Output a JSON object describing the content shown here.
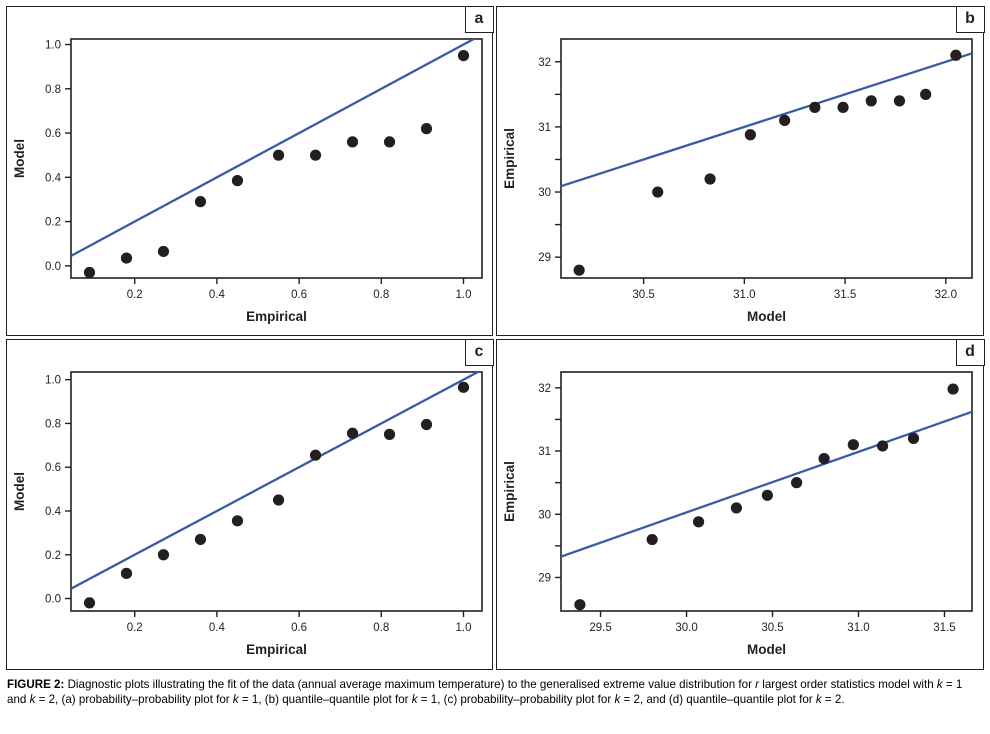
{
  "colors": {
    "reference_line": "#3b5aa5",
    "marker": "#231f20",
    "frame": "#231f20",
    "text": "#231f20"
  },
  "chart_data": [
    {
      "id": "a",
      "panel_letter": "a",
      "type": "scatter",
      "description": "probability-probability plot for k = 1",
      "xlabel": "Empirical",
      "ylabel": "Model",
      "xlim": [
        0.045,
        1.045
      ],
      "ylim": [
        -0.055,
        1.025
      ],
      "grid": false,
      "legend": null,
      "xtick_values": [
        0.2,
        0.4,
        0.6,
        0.8,
        1.0
      ],
      "xtick_labels": [
        "0.2",
        "0.4",
        "0.6",
        "0.8",
        "1.0"
      ],
      "ytick_values": [
        0.0,
        0.2,
        0.4,
        0.6,
        0.8,
        1.0
      ],
      "ytick_labels": [
        "0.0",
        "0.2",
        "0.4",
        "0.6",
        "0.8",
        "1.0"
      ],
      "ytick_minor_values": [],
      "points": [
        [
          0.09,
          -0.03
        ],
        [
          0.18,
          0.035
        ],
        [
          0.27,
          0.065
        ],
        [
          0.36,
          0.29
        ],
        [
          0.45,
          0.385
        ],
        [
          0.55,
          0.5
        ],
        [
          0.64,
          0.5
        ],
        [
          0.73,
          0.56
        ],
        [
          0.82,
          0.56
        ],
        [
          0.91,
          0.62
        ],
        [
          1.0,
          0.95
        ]
      ],
      "reference_line": {
        "x1": 0.045,
        "y1": 0.045,
        "x2": 1.045,
        "y2": 1.045
      }
    },
    {
      "id": "b",
      "panel_letter": "b",
      "type": "scatter",
      "description": "quantile-quantile plot for k = 1",
      "xlabel": "Model",
      "ylabel": "Empirical",
      "xlim": [
        30.09,
        32.13
      ],
      "ylim": [
        28.68,
        32.35
      ],
      "grid": false,
      "legend": null,
      "xtick_values": [
        30.5,
        31.0,
        31.5,
        32.0
      ],
      "xtick_labels": [
        "30.5",
        "31.0",
        "31.5",
        "32.0"
      ],
      "ytick_values": [
        29,
        30,
        31,
        32
      ],
      "ytick_labels": [
        "29",
        "30",
        "31",
        "32"
      ],
      "ytick_minor_values": [
        29.5,
        30.5,
        31.5
      ],
      "points": [
        [
          30.18,
          28.8
        ],
        [
          30.57,
          30.0
        ],
        [
          30.83,
          30.2
        ],
        [
          31.03,
          30.88
        ],
        [
          31.2,
          31.1
        ],
        [
          31.35,
          31.3
        ],
        [
          31.49,
          31.3
        ],
        [
          31.63,
          31.4
        ],
        [
          31.77,
          31.4
        ],
        [
          31.9,
          31.5
        ],
        [
          32.05,
          32.1
        ]
      ],
      "reference_line": {
        "x1": 30.09,
        "y1": 30.09,
        "x2": 32.13,
        "y2": 32.13
      }
    },
    {
      "id": "c",
      "panel_letter": "c",
      "type": "scatter",
      "description": "probability-probability plot for k = 2",
      "xlabel": "Empirical",
      "ylabel": "Model",
      "xlim": [
        0.045,
        1.045
      ],
      "ylim": [
        -0.057,
        1.035
      ],
      "grid": false,
      "legend": null,
      "xtick_values": [
        0.2,
        0.4,
        0.6,
        0.8,
        1.0
      ],
      "xtick_labels": [
        "0.2",
        "0.4",
        "0.6",
        "0.8",
        "1.0"
      ],
      "ytick_values": [
        0.0,
        0.2,
        0.4,
        0.6,
        0.8,
        1.0
      ],
      "ytick_labels": [
        "0.0",
        "0.2",
        "0.4",
        "0.6",
        "0.8",
        "1.0"
      ],
      "ytick_minor_values": [],
      "points": [
        [
          0.09,
          -0.02
        ],
        [
          0.18,
          0.115
        ],
        [
          0.27,
          0.2
        ],
        [
          0.36,
          0.27
        ],
        [
          0.45,
          0.355
        ],
        [
          0.55,
          0.45
        ],
        [
          0.64,
          0.655
        ],
        [
          0.73,
          0.755
        ],
        [
          0.82,
          0.75
        ],
        [
          0.91,
          0.795
        ],
        [
          1.0,
          0.965
        ]
      ],
      "reference_line": {
        "x1": 0.045,
        "y1": 0.045,
        "x2": 1.045,
        "y2": 1.045
      }
    },
    {
      "id": "d",
      "panel_letter": "d",
      "type": "scatter",
      "description": "quantile-quantile plot for k = 2",
      "xlabel": "Model",
      "ylabel": "Empirical",
      "xlim": [
        29.27,
        31.66
      ],
      "ylim": [
        28.47,
        32.25
      ],
      "grid": false,
      "legend": null,
      "xtick_values": [
        29.5,
        30.0,
        30.5,
        31.0,
        31.5
      ],
      "xtick_labels": [
        "29.5",
        "30.0",
        "30.5",
        "31.0",
        "31.5"
      ],
      "ytick_values": [
        29,
        30,
        31,
        32
      ],
      "ytick_labels": [
        "29",
        "30",
        "31",
        "32"
      ],
      "ytick_minor_values": [
        29.5,
        30.5,
        31.5
      ],
      "points": [
        [
          29.38,
          28.57
        ],
        [
          29.8,
          29.6
        ],
        [
          30.07,
          29.88
        ],
        [
          30.29,
          30.1
        ],
        [
          30.47,
          30.3
        ],
        [
          30.64,
          30.5
        ],
        [
          30.8,
          30.88
        ],
        [
          30.97,
          31.1
        ],
        [
          31.14,
          31.08
        ],
        [
          31.32,
          31.2
        ],
        [
          31.55,
          31.98
        ]
      ],
      "reference_line": {
        "x1": 29.27,
        "y1": 29.33,
        "x2": 31.66,
        "y2": 31.62
      }
    }
  ],
  "caption": {
    "segments": [
      {
        "t": "FIGURE 2: ",
        "b": true
      },
      {
        "t": "Diagnostic plots illustrating the fit of the data (annual average maximum temperature) to the generalised extreme value distribution for "
      },
      {
        "t": "r",
        "i": true
      },
      {
        "t": " largest order statistics model with "
      },
      {
        "t": "k",
        "i": true
      },
      {
        "t": " = 1 and "
      },
      {
        "t": "k",
        "i": true
      },
      {
        "t": " = 2, (a) probability–probability plot for "
      },
      {
        "t": "k",
        "i": true
      },
      {
        "t": " = 1, (b) quantile–quantile plot for "
      },
      {
        "t": "k",
        "i": true
      },
      {
        "t": " = 1, (c) probability–probability plot for "
      },
      {
        "t": "k",
        "i": true
      },
      {
        "t": " = 2, and (d) quantile–quantile plot for "
      },
      {
        "t": "k",
        "i": true
      },
      {
        "t": " = 2."
      }
    ]
  }
}
